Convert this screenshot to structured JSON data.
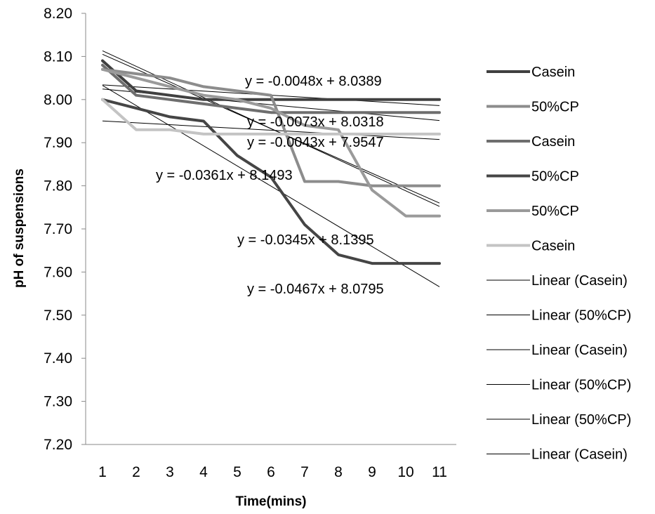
{
  "chart_data": {
    "type": "line",
    "xlabel": "Time(mins)",
    "ylabel": "pH of suspensions",
    "x": [
      1,
      2,
      3,
      4,
      5,
      6,
      7,
      8,
      9,
      10,
      11
    ],
    "x_ticks": [
      "1",
      "2",
      "3",
      "4",
      "5",
      "6",
      "7",
      "8",
      "9",
      "10",
      "11"
    ],
    "xlim": [
      0.5,
      11.5
    ],
    "ylim": [
      7.2,
      8.2
    ],
    "y_ticks": [
      "8.20",
      "8.10",
      "8.00",
      "7.90",
      "7.80",
      "7.70",
      "7.60",
      "7.50",
      "7.40",
      "7.30",
      "7.20"
    ],
    "grid": false,
    "legend_position": "right",
    "series": [
      {
        "name": "Casein",
        "color": "#404040",
        "values": [
          8.09,
          8.02,
          8.01,
          8.0,
          8.0,
          8.0,
          8.0,
          8.0,
          8.0,
          8.0,
          8.0
        ]
      },
      {
        "name": "50%CP",
        "color": "#8c8c8c",
        "values": [
          8.07,
          8.06,
          8.05,
          8.03,
          8.02,
          8.01,
          7.81,
          7.81,
          7.8,
          7.8,
          7.8
        ]
      },
      {
        "name": "Casein",
        "color": "#6e6e6e",
        "values": [
          8.08,
          8.01,
          8.0,
          7.99,
          7.98,
          7.97,
          7.97,
          7.97,
          7.97,
          7.97,
          7.97
        ]
      },
      {
        "name": "50%CP",
        "color": "#454545",
        "values": [
          8.0,
          7.98,
          7.96,
          7.95,
          7.87,
          7.82,
          7.71,
          7.64,
          7.62,
          7.62,
          7.62
        ]
      },
      {
        "name": "50%CP",
        "color": "#9a9a9a",
        "values": [
          8.07,
          8.05,
          8.03,
          8.01,
          8.0,
          7.98,
          7.94,
          7.93,
          7.79,
          7.73,
          7.73
        ]
      },
      {
        "name": "Casein",
        "color": "#c4c4c4",
        "values": [
          8.0,
          7.93,
          7.93,
          7.92,
          7.92,
          7.92,
          7.92,
          7.92,
          7.92,
          7.92,
          7.92
        ]
      }
    ],
    "trendlines": [
      {
        "name": "Linear (Casein)",
        "slope": -0.0048,
        "intercept": 8.0389,
        "label": "y = -0.0048x + 8.0389"
      },
      {
        "name": "Linear (50%CP)",
        "slope": -0.0345,
        "intercept": 8.1395,
        "label": "y = -0.0345x + 8.1395"
      },
      {
        "name": "Linear (Casein)",
        "slope": -0.0073,
        "intercept": 8.0318,
        "label": "y = -0.0073x + 8.0318"
      },
      {
        "name": "Linear (50%CP)",
        "slope": -0.0467,
        "intercept": 8.0795,
        "label": "y = -0.0467x + 8.0795"
      },
      {
        "name": "Linear (50%CP)",
        "slope": -0.0361,
        "intercept": 8.1493,
        "label": "y = -0.0361x + 8.1493"
      },
      {
        "name": "Linear (Casein)",
        "slope": -0.0043,
        "intercept": 7.9547,
        "label": "y = -0.0043x + 7.9547"
      }
    ]
  }
}
